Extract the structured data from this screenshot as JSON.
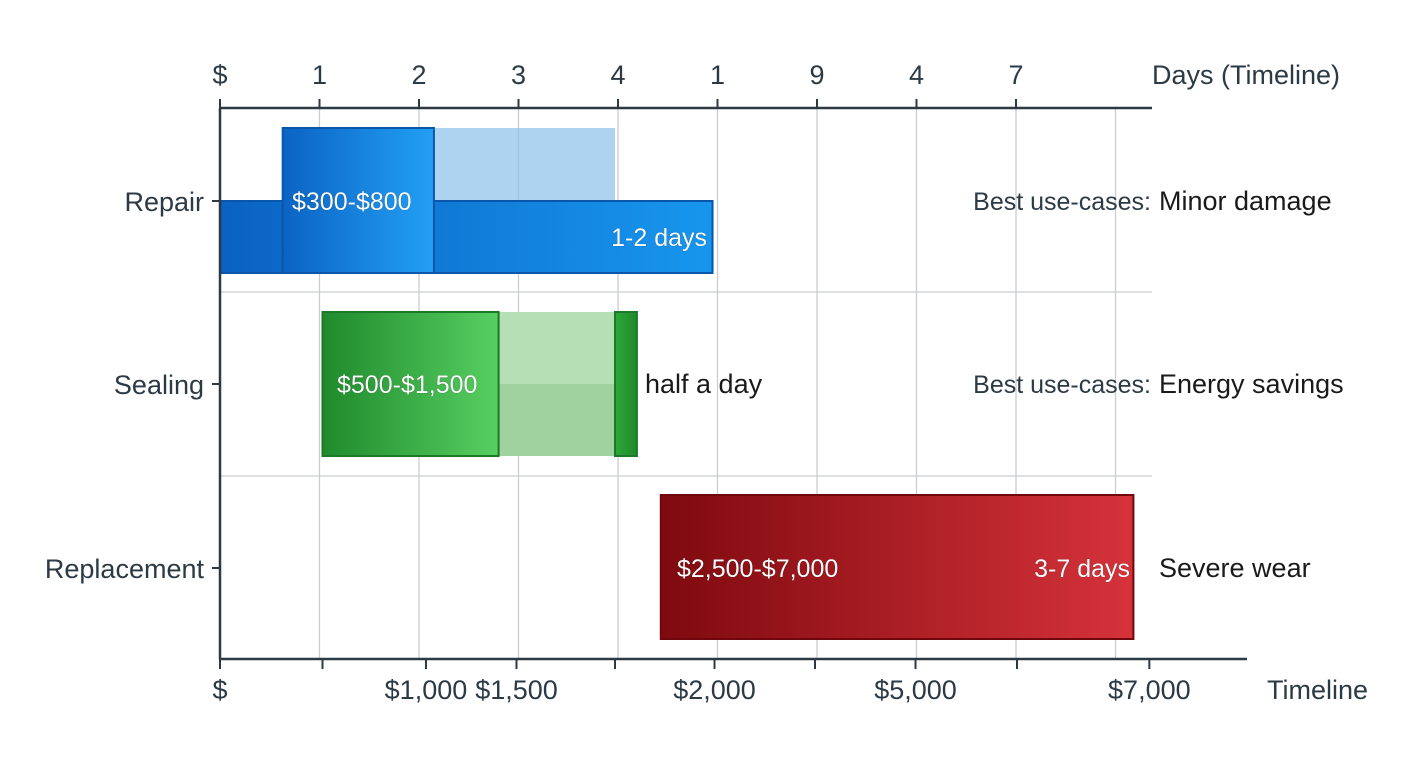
{
  "chart_data": {
    "type": "bar",
    "top_axis": {
      "title": "Days (Timeline)",
      "tick_labels": [
        "$",
        "1",
        "2",
        "3",
        "4",
        "1",
        "9",
        "4",
        "7"
      ]
    },
    "bottom_axis": {
      "title": "Timeline",
      "tick_labels": [
        "$",
        "",
        "$1,000",
        "$1,500",
        "",
        "$2,000",
        "",
        "$5,000",
        "",
        "$7,000"
      ]
    },
    "categories": [
      "Repair",
      "Sealing",
      "Replacement"
    ],
    "rows": [
      {
        "category": "Repair",
        "cost_range": [
          0.63,
          2.15
        ],
        "cost_label": "$300-$800",
        "days_range": [
          0,
          4.95
        ],
        "days_label": "1-2 days",
        "estimate_range": [
          2.15,
          3.97
        ],
        "note_prefix": "Best use-cases:",
        "note": "Minor damage",
        "color": "#1a8ee8"
      },
      {
        "category": "Sealing",
        "cost_range": [
          1.03,
          2.8
        ],
        "cost_label": "$500-$1,500",
        "days_range": [
          3.97,
          4.19
        ],
        "days_label": "half a day",
        "estimate_range": [
          2.8,
          3.97
        ],
        "note_prefix": "Best use-cases:",
        "note": "Energy savings",
        "color": "#3ab24a"
      },
      {
        "category": "Replacement",
        "cost_range": [
          4.43,
          9.18
        ],
        "cost_label": "$2,500-$7,000",
        "days_label": "3-7 days",
        "note_prefix": "",
        "note": "Severe wear",
        "color": "#b8202a"
      }
    ]
  }
}
